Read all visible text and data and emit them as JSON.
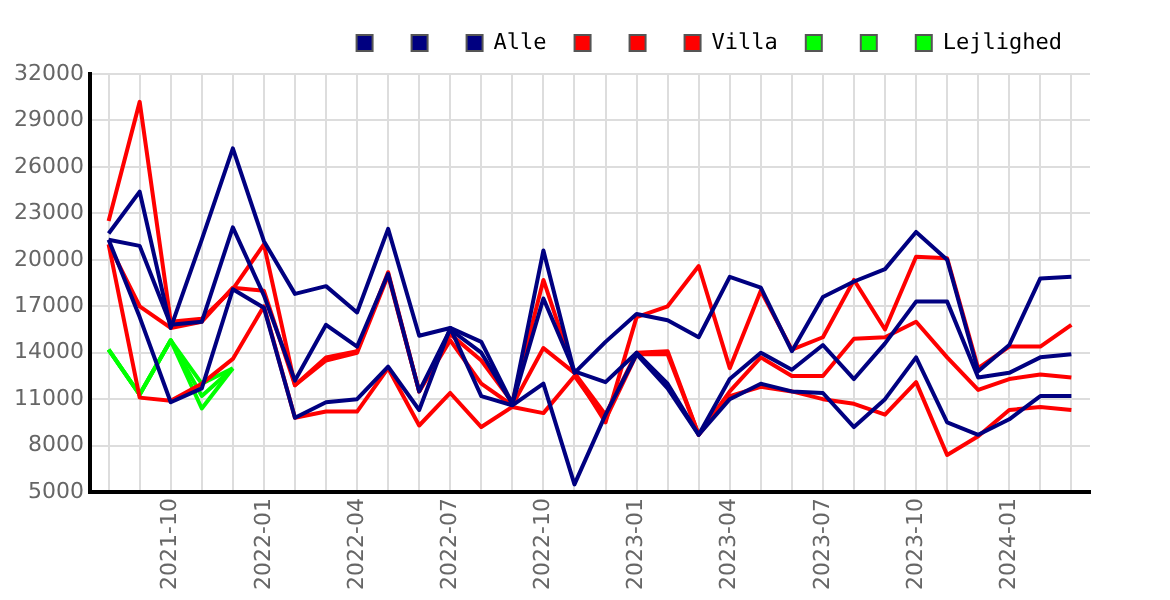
{
  "chart_data": {
    "type": "line",
    "x": [
      "2021-08",
      "2021-09",
      "2021-10",
      "2021-11",
      "2021-12",
      "2022-01",
      "2022-02",
      "2022-03",
      "2022-04",
      "2022-05",
      "2022-06",
      "2022-07",
      "2022-08",
      "2022-09",
      "2022-10",
      "2022-11",
      "2022-12",
      "2023-01",
      "2023-02",
      "2023-03",
      "2023-04",
      "2023-05",
      "2023-06",
      "2023-07",
      "2023-08",
      "2023-09",
      "2023-10",
      "2023-11",
      "2023-12",
      "2024-01",
      "2024-02",
      "2024-03"
    ],
    "series": [
      {
        "color": "#000080",
        "values": [
          21700,
          24400,
          15600,
          21300,
          27200,
          21200,
          17800,
          18300,
          16600,
          22000,
          15100,
          15600,
          14700,
          10700,
          20600,
          12700,
          14700,
          16500,
          16100,
          15000,
          18900,
          18200,
          14100,
          17600,
          18600,
          19400,
          21800,
          20000,
          12800,
          14500,
          18800,
          18900
        ]
      },
      {
        "color": "#000080",
        "values": [
          21300,
          16300,
          10800,
          11700,
          18100,
          16900,
          9800,
          10800,
          11000,
          13100,
          10300,
          15600,
          11200,
          10600,
          12000,
          5500,
          10000,
          13900,
          11700,
          8700,
          11000,
          12000,
          11500,
          11400,
          9200,
          11000,
          13700,
          9500,
          8700,
          9700,
          11200,
          11200
        ]
      },
      {
        "name": "Alle",
        "color": "#000080",
        "values": [
          21300,
          20900,
          15800,
          16000,
          22100,
          17700,
          12200,
          15800,
          14400,
          19100,
          11500,
          15500,
          14000,
          10700,
          17500,
          12800,
          12100,
          14000,
          12000,
          8700,
          12300,
          14000,
          12900,
          14500,
          12300,
          14600,
          17300,
          17300,
          12400,
          12700,
          13700,
          13900
        ]
      },
      {
        "color": "#ff0000",
        "values": [
          22500,
          30200,
          16000,
          16200,
          18100,
          21000,
          11900,
          13700,
          14100,
          19200,
          11500,
          15200,
          13500,
          10800,
          18700,
          12700,
          9500,
          16300,
          17000,
          19600,
          13000,
          18000,
          14200,
          15000,
          18700,
          15500,
          20200,
          20100,
          13000,
          14400,
          14400,
          15800
        ]
      },
      {
        "color": "#ff0000",
        "values": [
          21000,
          11100,
          10900,
          12000,
          13600,
          17000,
          9800,
          10200,
          10200,
          13000,
          9300,
          11400,
          9200,
          10500,
          10100,
          12500,
          9700,
          13900,
          13900,
          8700,
          11200,
          11800,
          11500,
          11000,
          10700,
          10000,
          12100,
          7400,
          8600,
          10300,
          10500,
          10300
        ]
      },
      {
        "name": "Villa",
        "color": "#ff0000",
        "values": [
          21000,
          17000,
          15600,
          16000,
          18200,
          18000,
          11900,
          13500,
          14000,
          19000,
          11500,
          14800,
          12000,
          10600,
          14300,
          12700,
          10000,
          14000,
          14100,
          8700,
          11500,
          13700,
          12500,
          12500,
          14900,
          15000,
          16000,
          13700,
          11600,
          12300,
          12600,
          12400
        ]
      },
      {
        "color": "#00ff00",
        "values": [
          14200,
          11300,
          14800,
          10400,
          13000,
          null,
          null,
          null,
          null,
          null,
          null,
          null,
          null,
          null,
          null,
          null,
          null,
          null,
          null,
          null,
          null,
          null,
          null,
          null,
          null,
          null,
          null,
          null,
          null,
          null,
          null,
          null
        ]
      },
      {
        "color": "#00ff00",
        "values": [
          14200,
          11300,
          14800,
          12000,
          13000,
          null,
          null,
          null,
          null,
          null,
          null,
          null,
          null,
          null,
          null,
          null,
          null,
          null,
          null,
          null,
          null,
          null,
          null,
          null,
          null,
          null,
          null,
          null,
          null,
          null,
          null,
          null
        ]
      },
      {
        "name": "Lejlighed",
        "color": "#00ff00",
        "values": [
          14200,
          11300,
          14800,
          11200,
          13000,
          null,
          null,
          null,
          null,
          null,
          null,
          null,
          null,
          null,
          null,
          null,
          null,
          null,
          null,
          null,
          null,
          null,
          null,
          null,
          null,
          null,
          null,
          null,
          null,
          null,
          null,
          null
        ]
      }
    ],
    "xlim": [
      "2021-07-13",
      "2024-03-19"
    ],
    "xticks": [
      {
        "value": "2021-08",
        "label": null
      },
      {
        "value": "2021-09",
        "label": null
      },
      "2021-10",
      {
        "value": "2021-11",
        "label": null
      },
      {
        "value": "2021-12",
        "label": null
      },
      "2022-01",
      {
        "value": "2022-02",
        "label": null
      },
      {
        "value": "2022-03",
        "label": null
      },
      "2022-04",
      {
        "value": "2022-05",
        "label": null
      },
      {
        "value": "2022-06",
        "label": null
      },
      "2022-07",
      {
        "value": "2022-08",
        "label": null
      },
      {
        "value": "2022-09",
        "label": null
      },
      "2022-10",
      {
        "value": "2022-11",
        "label": null
      },
      {
        "value": "2022-12",
        "label": null
      },
      "2023-01",
      {
        "value": "2023-02",
        "label": null
      },
      {
        "value": "2023-03",
        "label": null
      },
      "2023-04",
      {
        "value": "2023-05",
        "label": null
      },
      {
        "value": "2023-06",
        "label": null
      },
      "2023-07",
      {
        "value": "2023-08",
        "label": null
      },
      {
        "value": "2023-09",
        "label": null
      },
      "2023-10",
      {
        "value": "2023-11",
        "label": null
      },
      {
        "value": "2023-12",
        "label": null
      },
      "2024-01",
      {
        "value": "2024-02",
        "label": null
      },
      {
        "value": "2024-03",
        "label": null
      }
    ],
    "ylim": [
      5000,
      32000
    ],
    "yticks": [
      5000,
      8000,
      11000,
      14000,
      17000,
      20000,
      23000,
      26000,
      29000,
      32000
    ],
    "grid": true,
    "legend": "top right",
    "marker": "none",
    "line_style": "solid"
  }
}
